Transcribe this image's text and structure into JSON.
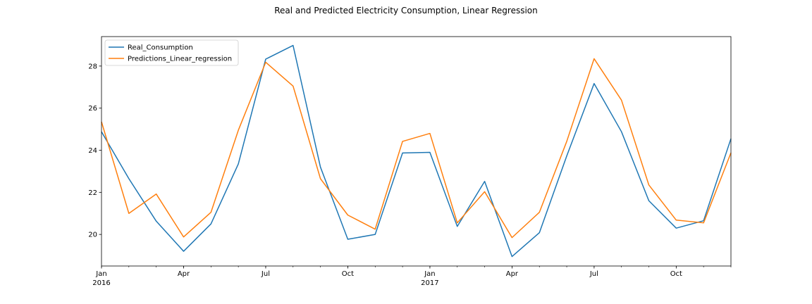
{
  "chart_data": {
    "type": "line",
    "title": "Real and Predicted Electricity Consumption, Linear Regression",
    "xlabel": "",
    "ylabel": "",
    "x": [
      "2016-01",
      "2016-02",
      "2016-03",
      "2016-04",
      "2016-05",
      "2016-06",
      "2016-07",
      "2016-08",
      "2016-09",
      "2016-10",
      "2016-11",
      "2016-12",
      "2017-01",
      "2017-02",
      "2017-03",
      "2017-04",
      "2017-05",
      "2017-06",
      "2017-07",
      "2017-08",
      "2017-09",
      "2017-10",
      "2017-11",
      "2017-12"
    ],
    "xlim": [
      "2016-01",
      "2017-12"
    ],
    "ylim": [
      18.5,
      29.4
    ],
    "yticks": [
      20,
      22,
      24,
      26,
      28
    ],
    "xtick_labels": [
      {
        "month": "2016-01",
        "label": "Jan",
        "sublabel": "2016"
      },
      {
        "month": "2016-04",
        "label": "Apr",
        "sublabel": ""
      },
      {
        "month": "2016-07",
        "label": "Jul",
        "sublabel": ""
      },
      {
        "month": "2016-10",
        "label": "Oct",
        "sublabel": ""
      },
      {
        "month": "2017-01",
        "label": "Jan",
        "sublabel": "2017"
      },
      {
        "month": "2017-04",
        "label": "Apr",
        "sublabel": ""
      },
      {
        "month": "2017-07",
        "label": "Jul",
        "sublabel": ""
      },
      {
        "month": "2017-10",
        "label": "Oct",
        "sublabel": ""
      }
    ],
    "grid": false,
    "legend_position": "top-left",
    "series": [
      {
        "name": "Real_Consumption",
        "color": "#1f77b4",
        "values": [
          24.88,
          22.65,
          20.63,
          19.2,
          20.5,
          23.35,
          28.33,
          28.98,
          23.2,
          19.77,
          20.0,
          23.87,
          23.9,
          20.38,
          22.52,
          18.95,
          20.08,
          23.73,
          27.17,
          24.88,
          21.6,
          20.3,
          20.65,
          24.55
        ]
      },
      {
        "name": "Predictions_Linear_regression",
        "color": "#ff7f0e",
        "values": [
          25.35,
          21.0,
          21.92,
          19.88,
          21.05,
          24.95,
          28.18,
          27.05,
          22.65,
          20.92,
          20.25,
          24.42,
          24.8,
          20.55,
          22.03,
          19.85,
          21.05,
          24.42,
          28.35,
          26.38,
          22.35,
          20.68,
          20.55,
          23.88
        ]
      }
    ]
  }
}
